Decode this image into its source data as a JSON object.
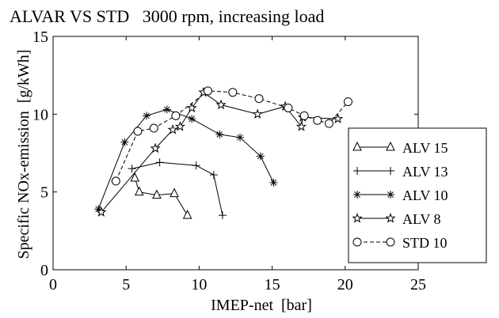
{
  "chart_data": {
    "type": "line",
    "title": "ALVAR VS STD   3000 rpm, increasing load",
    "xlabel": "IMEP-net  [bar]",
    "ylabel": "Specific NOx-emission  [g/kWh]",
    "xlim": [
      0,
      25
    ],
    "ylim": [
      0,
      15
    ],
    "xticks": [
      0,
      5,
      10,
      15,
      20,
      25
    ],
    "yticks": [
      0,
      5,
      10,
      15
    ],
    "xtick_labels": [
      "0",
      "5",
      "10",
      "15",
      "20",
      "25"
    ],
    "ytick_labels": [
      "0",
      "5",
      "10",
      "15"
    ],
    "grid": false,
    "legend_position": "right",
    "series": [
      {
        "name": "ALV 15",
        "marker": "triangle",
        "dash": "solid",
        "x": [
          5.6,
          5.9,
          7.1,
          8.3,
          9.2
        ],
        "y": [
          5.9,
          5.0,
          4.8,
          4.9,
          3.5
        ]
      },
      {
        "name": "ALV 13",
        "marker": "plus",
        "dash": "solid",
        "x": [
          5.4,
          7.3,
          9.8,
          11.0,
          11.6
        ],
        "y": [
          6.5,
          6.9,
          6.7,
          6.1,
          3.5
        ]
      },
      {
        "name": "ALV 10",
        "marker": "asterisk",
        "dash": "solid",
        "x": [
          3.1,
          4.9,
          6.4,
          7.8,
          9.5,
          11.4,
          12.8,
          14.2,
          15.1
        ],
        "y": [
          3.9,
          8.2,
          9.9,
          10.3,
          9.7,
          8.7,
          8.5,
          7.3,
          5.6
        ]
      },
      {
        "name": "ALV  8",
        "marker": "star",
        "dash": "solid",
        "x": [
          3.3,
          7.0,
          8.2,
          8.7,
          9.5,
          10.3,
          11.5,
          14.0,
          15.9,
          17.0,
          17.1,
          19.5
        ],
        "y": [
          3.7,
          7.8,
          9.0,
          9.2,
          10.4,
          11.4,
          10.6,
          10.0,
          10.5,
          9.2,
          9.8,
          9.7
        ]
      },
      {
        "name": "STD 10",
        "marker": "circle",
        "dash": "dashed",
        "x": [
          4.3,
          5.8,
          6.9,
          8.4,
          10.6,
          12.3,
          14.1,
          16.1,
          17.2,
          18.1,
          18.9,
          20.2
        ],
        "y": [
          5.7,
          8.9,
          9.1,
          9.9,
          11.5,
          11.4,
          11.0,
          10.4,
          9.9,
          9.6,
          9.4,
          10.8
        ]
      }
    ]
  }
}
